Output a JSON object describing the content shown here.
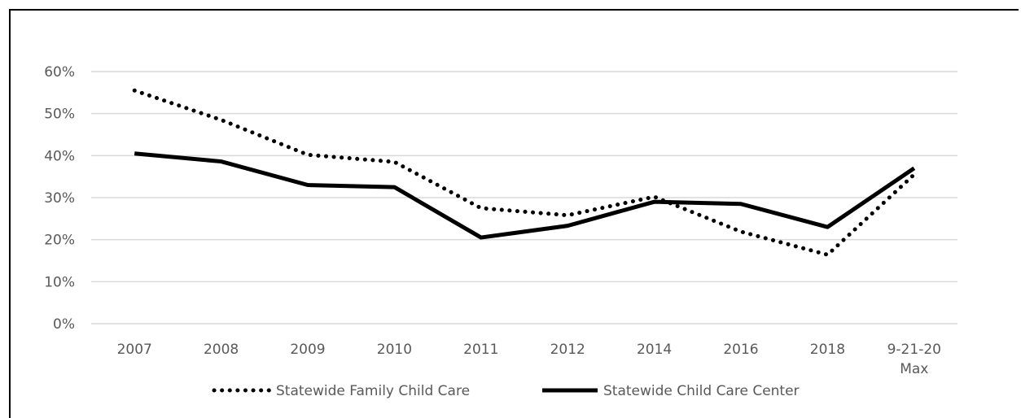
{
  "chart_data": {
    "type": "line",
    "categories": [
      "2007",
      "2008",
      "2009",
      "2010",
      "2011",
      "2012",
      "2014",
      "2016",
      "2018",
      "9-21-20 Max"
    ],
    "series": [
      {
        "name": "Statewide Family Child Care",
        "style": "dotted",
        "color": "#000000",
        "values": [
          55.5,
          48.5,
          40.2,
          38.5,
          27.5,
          25.8,
          30.2,
          21.9,
          16.4,
          35.5
        ]
      },
      {
        "name": "Statewide Child Care Center",
        "style": "solid",
        "color": "#000000",
        "values": [
          40.5,
          38.6,
          33.0,
          32.5,
          20.5,
          23.3,
          29.0,
          28.5,
          23.0,
          37.0
        ]
      }
    ],
    "ylim": [
      0,
      60
    ],
    "yticks": [
      "0%",
      "10%",
      "20%",
      "30%",
      "40%",
      "50%",
      "60%"
    ],
    "grid": true,
    "gridline_color": "#d9d9d9",
    "legend": "bottom"
  }
}
